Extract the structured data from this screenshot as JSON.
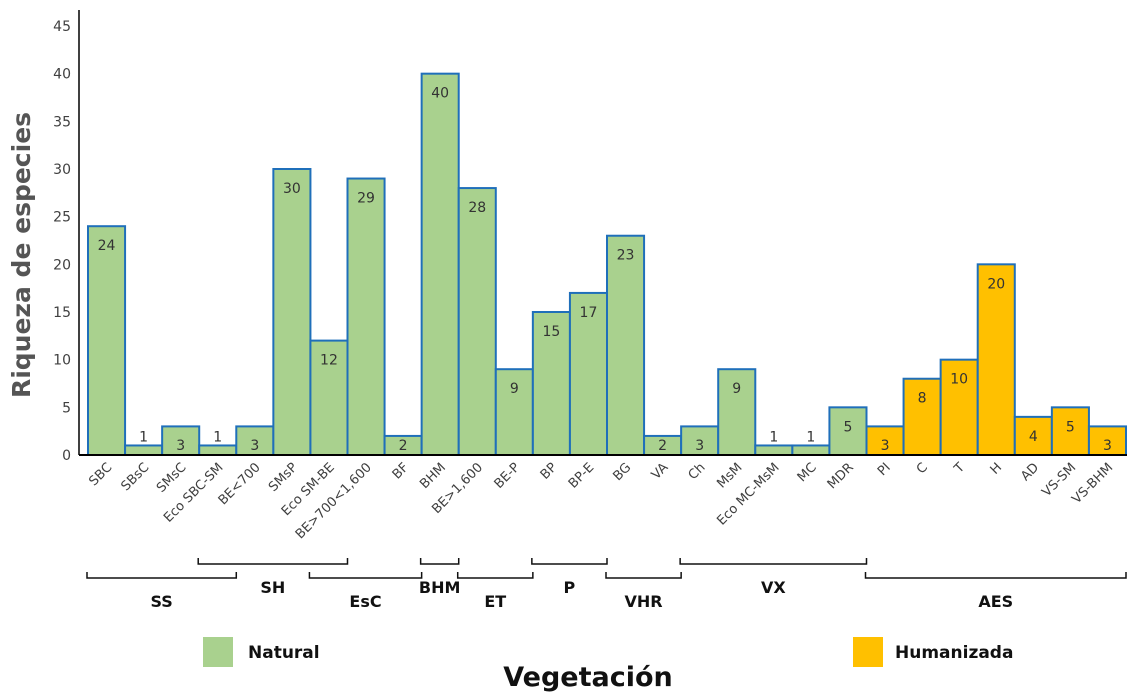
{
  "chart_data": {
    "type": "bar",
    "title": "",
    "xlabel": "Vegetación",
    "ylabel": "Riqueza de especies",
    "ylim": [
      0,
      45
    ],
    "yticks": [
      0,
      5,
      10,
      15,
      20,
      25,
      30,
      35,
      40,
      45
    ],
    "grid": false,
    "legend_placement": "bottom",
    "colors": {
      "Natural": "#a9d18e",
      "Humanizada": "#ffc000",
      "bar_border": "#1f6fba",
      "axis": "#000000"
    },
    "categories": [
      "SBC",
      "SBsC",
      "SMsC",
      "Eco SBC-SM",
      "BE<700",
      "SMsP",
      "Eco SM-BE",
      "BE>700<1,600",
      "BF",
      "BHM",
      "BE>1,600",
      "BE-P",
      "BP",
      "BP-E",
      "BG",
      "VA",
      "Ch",
      "MsM",
      "Eco MC-MsM",
      "MC",
      "MDR",
      "PI",
      "C",
      "T",
      "H",
      "AD",
      "VS-SM",
      "VS-BHM"
    ],
    "values": [
      24,
      1,
      3,
      1,
      3,
      30,
      12,
      29,
      2,
      40,
      28,
      9,
      15,
      17,
      23,
      2,
      3,
      9,
      1,
      1,
      5,
      3,
      8,
      10,
      20,
      4,
      5,
      3
    ],
    "series_type": [
      "Natural",
      "Natural",
      "Natural",
      "Natural",
      "Natural",
      "Natural",
      "Natural",
      "Natural",
      "Natural",
      "Natural",
      "Natural",
      "Natural",
      "Natural",
      "Natural",
      "Natural",
      "Natural",
      "Natural",
      "Natural",
      "Natural",
      "Natural",
      "Natural",
      "Humanizada",
      "Humanizada",
      "Humanizada",
      "Humanizada",
      "Humanizada",
      "Humanizada",
      "Humanizada"
    ],
    "groups": [
      {
        "label": "SS",
        "start": 0,
        "end": 3,
        "row": "lower"
      },
      {
        "label": "SH",
        "start": 3,
        "end": 6,
        "row": "upper"
      },
      {
        "label": "EsC",
        "start": 6,
        "end": 8,
        "row": "lower"
      },
      {
        "label": "BHM",
        "start": 9,
        "end": 9,
        "row": "upper"
      },
      {
        "label": "ET",
        "start": 10,
        "end": 11,
        "row": "lower"
      },
      {
        "label": "P",
        "start": 12,
        "end": 13,
        "row": "upper"
      },
      {
        "label": "VHR",
        "start": 14,
        "end": 15,
        "row": "lower"
      },
      {
        "label": "VX",
        "start": 16,
        "end": 20,
        "row": "upper"
      },
      {
        "label": "AES",
        "start": 21,
        "end": 27,
        "row": "lower"
      }
    ],
    "legend": [
      {
        "label": "Natural",
        "color": "#a9d18e"
      },
      {
        "label": "Humanizada",
        "color": "#ffc000"
      }
    ]
  }
}
